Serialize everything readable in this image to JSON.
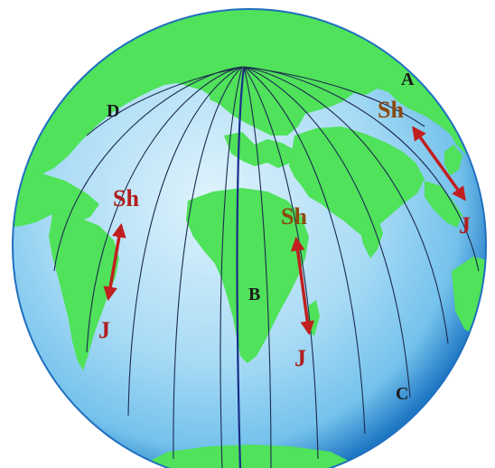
{
  "figure": {
    "colors": {
      "ocean_light": "#dff3fc",
      "ocean_mid": "#74c2ec",
      "ocean_dark": "#1f78c4",
      "land": "#4fe25a",
      "meridian": "#1c2a4f",
      "arrow": "#c0201f",
      "label_dark": "#1a1a1a",
      "label_sh_brown": "#8b4a0e",
      "label_red": "#b01e1e"
    },
    "point_labels": {
      "A": "A",
      "B": "B",
      "C": "C",
      "D": "D"
    },
    "markers": [
      {
        "id": "west",
        "top": "Sh",
        "bottom": "J"
      },
      {
        "id": "africa",
        "top": "Sh",
        "bottom": "J"
      },
      {
        "id": "east",
        "top": "Sh",
        "bottom": "J"
      }
    ]
  }
}
